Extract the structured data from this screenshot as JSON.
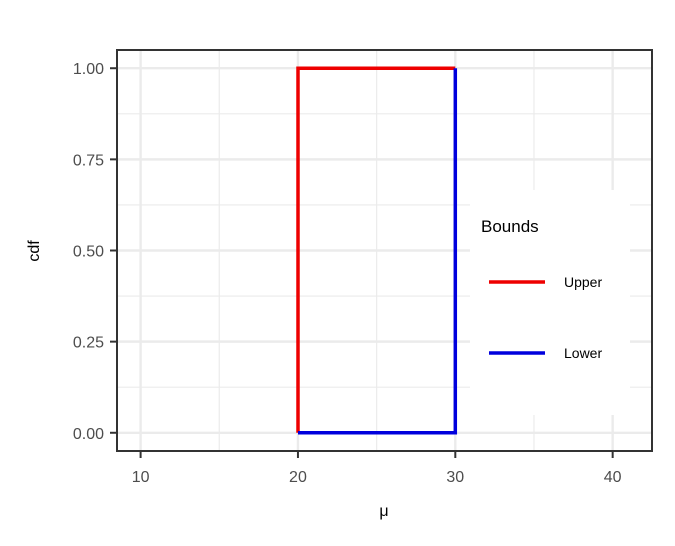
{
  "chart_data": {
    "type": "line",
    "title": "",
    "xlabel": "μ",
    "ylabel": "cdf",
    "xlim": [
      8.5,
      42.5
    ],
    "ylim": [
      -0.05,
      1.05
    ],
    "x_ticks": [
      10,
      20,
      30,
      40
    ],
    "x_tick_labels": [
      "10",
      "20",
      "30",
      "40"
    ],
    "y_ticks": [
      0,
      0.25,
      0.5,
      0.75,
      1
    ],
    "y_tick_labels": [
      "0.00",
      "0.25",
      "0.50",
      "0.75",
      "1.00"
    ],
    "grid": true,
    "legend": {
      "title": "Bounds",
      "placement": "right-inside",
      "entries": [
        "Upper",
        "Lower"
      ]
    },
    "series": [
      {
        "name": "Upper",
        "color": "#ee0000",
        "points": [
          [
            20,
            0
          ],
          [
            20,
            1
          ],
          [
            30,
            1
          ]
        ]
      },
      {
        "name": "Lower",
        "color": "#0000dd",
        "points": [
          [
            20,
            0
          ],
          [
            30,
            0
          ],
          [
            30,
            1
          ]
        ]
      }
    ]
  }
}
